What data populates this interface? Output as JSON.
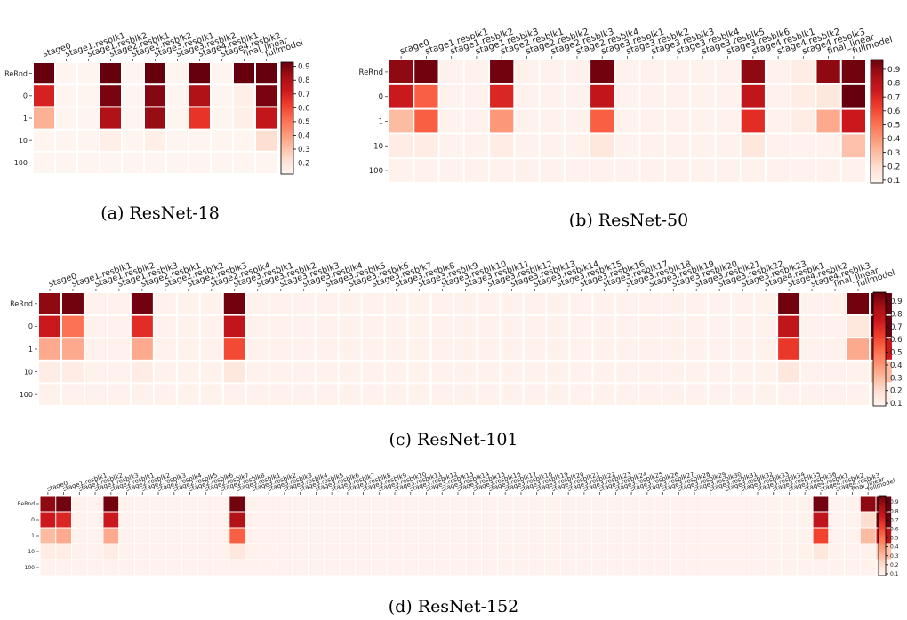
{
  "chart_data": [
    {
      "type": "heatmap",
      "caption": "(a) ResNet-18",
      "rows": [
        "ReRnd",
        "0",
        "1",
        "10",
        "100"
      ],
      "columns": [
        "stage0",
        "stage1.resblk1",
        "stage1.resblk2",
        "stage2.resblk1",
        "stage2.resblk2",
        "stage3.resblk1",
        "stage3.resblk2",
        "stage4.resblk1",
        "stage4.resblk2",
        "final_linear",
        "fullmodel"
      ],
      "values": [
        [
          0.95,
          0.1,
          0.1,
          0.95,
          0.1,
          0.95,
          0.1,
          0.95,
          0.1,
          0.95,
          0.95
        ],
        [
          0.7,
          0.1,
          0.1,
          0.9,
          0.1,
          0.88,
          0.1,
          0.8,
          0.12,
          0.15,
          0.9
        ],
        [
          0.35,
          0.1,
          0.1,
          0.8,
          0.1,
          0.85,
          0.1,
          0.65,
          0.12,
          0.15,
          0.75
        ],
        [
          0.12,
          0.1,
          0.1,
          0.15,
          0.1,
          0.15,
          0.1,
          0.12,
          0.1,
          0.1,
          0.22
        ],
        [
          0.1,
          0.1,
          0.1,
          0.1,
          0.1,
          0.1,
          0.1,
          0.1,
          0.1,
          0.1,
          0.1
        ]
      ],
      "colorbar_ticks": [
        "0.2",
        "0.3",
        "0.4",
        "0.5",
        "0.6",
        "0.7",
        "0.8",
        "0.9"
      ],
      "colorbar_range": [
        0.12,
        0.93
      ],
      "colormap": "Reds"
    },
    {
      "type": "heatmap",
      "caption": "(b) ResNet-50",
      "rows": [
        "ReRnd",
        "0",
        "1",
        "10",
        "100"
      ],
      "columns": [
        "stage0",
        "stage1.resblk1",
        "stage1.resblk2",
        "stage1.resblk3",
        "stage2.resblk1",
        "stage2.resblk2",
        "stage2.resblk3",
        "stage2.resblk4",
        "stage3.resblk1",
        "stage3.resblk2",
        "stage3.resblk3",
        "stage3.resblk4",
        "stage3.resblk5",
        "stage3.resblk6",
        "stage4.resblk1",
        "stage4.resblk2",
        "stage4.resblk3",
        "final_linear",
        "fullmodel"
      ],
      "values": [
        [
          0.9,
          0.95,
          0.1,
          0.1,
          0.95,
          0.1,
          0.1,
          0.1,
          0.95,
          0.1,
          0.1,
          0.1,
          0.1,
          0.1,
          0.9,
          0.1,
          0.12,
          0.9,
          0.95
        ],
        [
          0.75,
          0.55,
          0.1,
          0.1,
          0.7,
          0.1,
          0.1,
          0.1,
          0.78,
          0.1,
          0.1,
          0.1,
          0.1,
          0.1,
          0.78,
          0.1,
          0.12,
          0.15,
          0.98
        ],
        [
          0.3,
          0.55,
          0.1,
          0.1,
          0.4,
          0.1,
          0.1,
          0.1,
          0.55,
          0.1,
          0.1,
          0.1,
          0.1,
          0.1,
          0.68,
          0.1,
          0.12,
          0.35,
          0.75
        ],
        [
          0.12,
          0.12,
          0.1,
          0.1,
          0.12,
          0.1,
          0.1,
          0.1,
          0.15,
          0.1,
          0.1,
          0.1,
          0.1,
          0.1,
          0.15,
          0.1,
          0.1,
          0.1,
          0.28
        ],
        [
          0.1,
          0.1,
          0.1,
          0.1,
          0.1,
          0.1,
          0.1,
          0.1,
          0.1,
          0.1,
          0.1,
          0.1,
          0.1,
          0.1,
          0.1,
          0.1,
          0.1,
          0.1,
          0.1
        ]
      ],
      "colorbar_ticks": [
        "0.1",
        "0.2",
        "0.3",
        "0.4",
        "0.5",
        "0.6",
        "0.7",
        "0.8",
        "0.9"
      ],
      "colorbar_range": [
        0.08,
        0.97
      ],
      "colormap": "Reds"
    },
    {
      "type": "heatmap",
      "caption": "(c) ResNet-101",
      "rows": [
        "ReRnd",
        "0",
        "1",
        "10",
        "100"
      ],
      "columns": [
        "stage0",
        "stage1.resblk1",
        "stage1.resblk2",
        "stage1.resblk3",
        "stage2.resblk1",
        "stage2.resblk2",
        "stage2.resblk3",
        "stage2.resblk4",
        "stage3.resblk1",
        "stage3.resblk2",
        "stage3.resblk3",
        "stage3.resblk4",
        "stage3.resblk5",
        "stage3.resblk6",
        "stage3.resblk7",
        "stage3.resblk8",
        "stage3.resblk9",
        "stage3.resblk10",
        "stage3.resblk11",
        "stage3.resblk12",
        "stage3.resblk13",
        "stage3.resblk14",
        "stage3.resblk15",
        "stage3.resblk16",
        "stage3.resblk17",
        "stage3.resblk18",
        "stage3.resblk19",
        "stage3.resblk20",
        "stage3.resblk21",
        "stage3.resblk22",
        "stage3.resblk23",
        "stage4.resblk1",
        "stage4.resblk2",
        "stage4.resblk3",
        "final_linear",
        "fullmodel"
      ],
      "values": [
        [
          0.9,
          0.95,
          0.1,
          0.1,
          0.95,
          0.1,
          0.1,
          0.1,
          0.95,
          0.1,
          0.1,
          0.1,
          0.1,
          0.1,
          0.1,
          0.1,
          0.1,
          0.1,
          0.1,
          0.1,
          0.1,
          0.1,
          0.1,
          0.1,
          0.1,
          0.1,
          0.1,
          0.1,
          0.1,
          0.1,
          0.1,
          0.1,
          0.95,
          0.1,
          0.1,
          0.95,
          0.98
        ],
        [
          0.75,
          0.5,
          0.1,
          0.1,
          0.68,
          0.1,
          0.1,
          0.1,
          0.78,
          0.1,
          0.1,
          0.1,
          0.1,
          0.1,
          0.1,
          0.1,
          0.1,
          0.1,
          0.1,
          0.1,
          0.1,
          0.1,
          0.1,
          0.1,
          0.1,
          0.1,
          0.1,
          0.1,
          0.1,
          0.1,
          0.1,
          0.1,
          0.78,
          0.1,
          0.1,
          0.15,
          0.98
        ],
        [
          0.35,
          0.35,
          0.1,
          0.1,
          0.35,
          0.1,
          0.1,
          0.1,
          0.6,
          0.1,
          0.1,
          0.1,
          0.1,
          0.1,
          0.1,
          0.1,
          0.1,
          0.1,
          0.1,
          0.1,
          0.1,
          0.1,
          0.1,
          0.1,
          0.1,
          0.1,
          0.1,
          0.1,
          0.1,
          0.1,
          0.1,
          0.1,
          0.65,
          0.1,
          0.1,
          0.35,
          0.75
        ],
        [
          0.12,
          0.12,
          0.1,
          0.1,
          0.12,
          0.1,
          0.1,
          0.1,
          0.15,
          0.1,
          0.1,
          0.1,
          0.1,
          0.1,
          0.1,
          0.1,
          0.1,
          0.1,
          0.1,
          0.1,
          0.1,
          0.1,
          0.1,
          0.1,
          0.1,
          0.1,
          0.1,
          0.1,
          0.1,
          0.1,
          0.1,
          0.1,
          0.15,
          0.1,
          0.1,
          0.1,
          0.3
        ],
        [
          0.1,
          0.1,
          0.1,
          0.1,
          0.1,
          0.1,
          0.1,
          0.1,
          0.1,
          0.1,
          0.1,
          0.1,
          0.1,
          0.1,
          0.1,
          0.1,
          0.1,
          0.1,
          0.1,
          0.1,
          0.1,
          0.1,
          0.1,
          0.1,
          0.1,
          0.1,
          0.1,
          0.1,
          0.1,
          0.1,
          0.1,
          0.1,
          0.1,
          0.1,
          0.1,
          0.1,
          0.1
        ]
      ],
      "colorbar_ticks": [
        "0.1",
        "0.2",
        "0.3",
        "0.4",
        "0.5",
        "0.6",
        "0.7",
        "0.8",
        "0.9"
      ],
      "colorbar_range": [
        0.08,
        0.97
      ],
      "colormap": "Reds"
    },
    {
      "type": "heatmap",
      "caption": "(d) ResNet-152",
      "rows": [
        "ReRnd",
        "0",
        "1",
        "10",
        "100"
      ],
      "columns": [
        "stage0",
        "stage1.resblk1",
        "stage1.resblk2",
        "stage1.resblk3",
        "stage2.resblk1",
        "stage2.resblk2",
        "stage2.resblk3",
        "stage2.resblk4",
        "stage2.resblk5",
        "stage2.resblk6",
        "stage2.resblk7",
        "stage2.resblk8",
        "stage3.resblk1",
        "stage3.resblk2",
        "stage3.resblk3",
        "stage3.resblk4",
        "stage3.resblk5",
        "stage3.resblk6",
        "stage3.resblk7",
        "stage3.resblk8",
        "stage3.resblk9",
        "stage3.resblk10",
        "stage3.resblk11",
        "stage3.resblk12",
        "stage3.resblk13",
        "stage3.resblk14",
        "stage3.resblk15",
        "stage3.resblk16",
        "stage3.resblk17",
        "stage3.resblk18",
        "stage3.resblk19",
        "stage3.resblk20",
        "stage3.resblk21",
        "stage3.resblk22",
        "stage3.resblk23",
        "stage3.resblk24",
        "stage3.resblk25",
        "stage3.resblk26",
        "stage3.resblk27",
        "stage3.resblk28",
        "stage3.resblk29",
        "stage3.resblk30",
        "stage3.resblk31",
        "stage3.resblk32",
        "stage3.resblk33",
        "stage3.resblk34",
        "stage3.resblk35",
        "stage3.resblk36",
        "stage4.resblk1",
        "stage4.resblk2",
        "stage4.resblk3",
        "final_linear",
        "fullmodel"
      ],
      "values": [
        [
          0.9,
          0.95,
          0.1,
          0.1,
          0.95,
          0.1,
          0.1,
          0.1,
          0.1,
          0.1,
          0.1,
          0.1,
          0.95,
          0.1,
          0.1,
          0.1,
          0.1,
          0.1,
          0.1,
          0.1,
          0.1,
          0.1,
          0.1,
          0.1,
          0.1,
          0.1,
          0.1,
          0.1,
          0.1,
          0.1,
          0.1,
          0.1,
          0.1,
          0.1,
          0.1,
          0.1,
          0.1,
          0.1,
          0.1,
          0.1,
          0.1,
          0.1,
          0.1,
          0.1,
          0.1,
          0.1,
          0.1,
          0.1,
          0.1,
          0.95,
          0.1,
          0.1,
          0.9,
          0.98
        ],
        [
          0.75,
          0.7,
          0.1,
          0.1,
          0.75,
          0.1,
          0.1,
          0.1,
          0.1,
          0.1,
          0.1,
          0.1,
          0.82,
          0.1,
          0.1,
          0.1,
          0.1,
          0.1,
          0.1,
          0.1,
          0.1,
          0.1,
          0.1,
          0.1,
          0.1,
          0.1,
          0.1,
          0.1,
          0.1,
          0.1,
          0.1,
          0.1,
          0.1,
          0.1,
          0.1,
          0.1,
          0.1,
          0.1,
          0.1,
          0.1,
          0.1,
          0.1,
          0.1,
          0.1,
          0.1,
          0.1,
          0.1,
          0.1,
          0.1,
          0.78,
          0.1,
          0.1,
          0.2,
          0.98
        ],
        [
          0.3,
          0.35,
          0.1,
          0.1,
          0.35,
          0.1,
          0.1,
          0.1,
          0.1,
          0.1,
          0.1,
          0.1,
          0.55,
          0.1,
          0.1,
          0.1,
          0.1,
          0.1,
          0.1,
          0.1,
          0.1,
          0.1,
          0.1,
          0.1,
          0.1,
          0.1,
          0.1,
          0.1,
          0.1,
          0.1,
          0.1,
          0.1,
          0.1,
          0.1,
          0.1,
          0.1,
          0.1,
          0.1,
          0.1,
          0.1,
          0.1,
          0.1,
          0.1,
          0.1,
          0.1,
          0.1,
          0.1,
          0.1,
          0.1,
          0.62,
          0.1,
          0.1,
          0.3,
          0.8
        ],
        [
          0.12,
          0.12,
          0.1,
          0.1,
          0.12,
          0.1,
          0.1,
          0.1,
          0.1,
          0.1,
          0.1,
          0.1,
          0.15,
          0.1,
          0.1,
          0.1,
          0.1,
          0.1,
          0.1,
          0.1,
          0.1,
          0.1,
          0.1,
          0.1,
          0.1,
          0.1,
          0.1,
          0.1,
          0.1,
          0.1,
          0.1,
          0.1,
          0.1,
          0.1,
          0.1,
          0.1,
          0.1,
          0.1,
          0.1,
          0.1,
          0.1,
          0.1,
          0.1,
          0.1,
          0.1,
          0.1,
          0.1,
          0.1,
          0.1,
          0.15,
          0.1,
          0.1,
          0.1,
          0.28
        ],
        [
          0.1,
          0.1,
          0.1,
          0.1,
          0.1,
          0.1,
          0.1,
          0.1,
          0.1,
          0.1,
          0.1,
          0.1,
          0.1,
          0.1,
          0.1,
          0.1,
          0.1,
          0.1,
          0.1,
          0.1,
          0.1,
          0.1,
          0.1,
          0.1,
          0.1,
          0.1,
          0.1,
          0.1,
          0.1,
          0.1,
          0.1,
          0.1,
          0.1,
          0.1,
          0.1,
          0.1,
          0.1,
          0.1,
          0.1,
          0.1,
          0.1,
          0.1,
          0.1,
          0.1,
          0.1,
          0.1,
          0.1,
          0.1,
          0.1,
          0.1,
          0.1,
          0.1,
          0.1,
          0.1
        ]
      ],
      "colorbar_ticks": [
        "0.1",
        "0.2",
        "0.3",
        "0.4",
        "0.5",
        "0.6",
        "0.7",
        "0.8",
        "0.9"
      ],
      "colorbar_range": [
        0.08,
        0.97
      ],
      "colormap": "Reds"
    }
  ]
}
